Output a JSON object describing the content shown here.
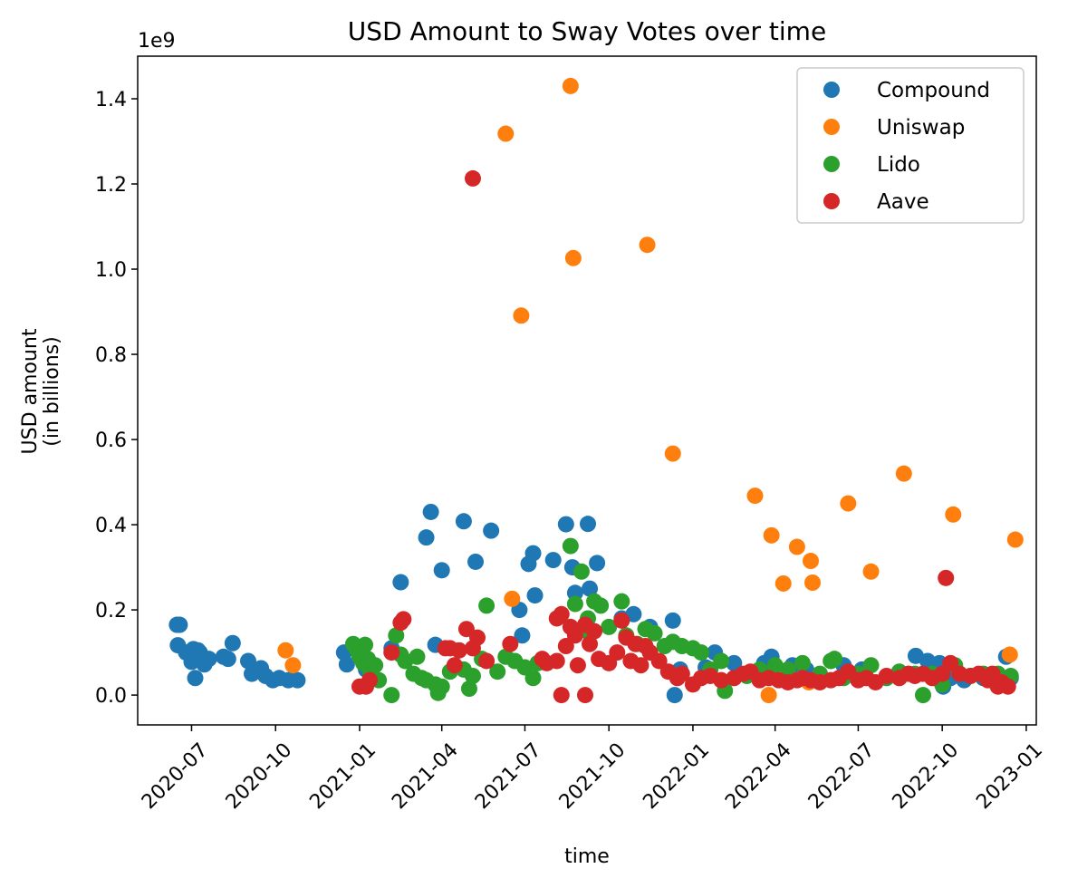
{
  "chart_data": {
    "type": "scatter",
    "title": "USD Amount to Sway Votes over time",
    "xlabel": "time",
    "ylabel_lines": [
      "USD amount",
      "(in billions)"
    ],
    "offset_label": "1e9",
    "x_ticks": [
      "2020-07",
      "2020-10",
      "2021-01",
      "2021-04",
      "2021-07",
      "2021-10",
      "2022-01",
      "2022-04",
      "2022-07",
      "2022-10",
      "2023-01"
    ],
    "y_ticks": [
      "0.0",
      "0.2",
      "0.4",
      "0.6",
      "0.8",
      "1.0",
      "1.2",
      "1.4"
    ],
    "xlim": [
      "2020-05-03",
      "2023-01-12"
    ],
    "ylim": [
      -0.07,
      1.5
    ],
    "legend_position": "top-right",
    "series": [
      {
        "name": "Compound",
        "color": "#1f77b4",
        "points": [
          [
            "2020-06-15",
            0.165
          ],
          [
            "2020-06-18",
            0.165
          ],
          [
            "2020-06-16",
            0.117
          ],
          [
            "2020-06-25",
            0.1
          ],
          [
            "2020-07-01",
            0.078
          ],
          [
            "2020-07-03",
            0.108
          ],
          [
            "2020-07-05",
            0.04
          ],
          [
            "2020-07-08",
            0.105
          ],
          [
            "2020-07-10",
            0.1
          ],
          [
            "2020-07-15",
            0.072
          ],
          [
            "2020-07-20",
            0.085
          ],
          [
            "2020-08-05",
            0.09
          ],
          [
            "2020-08-10",
            0.085
          ],
          [
            "2020-08-15",
            0.122
          ],
          [
            "2020-09-01",
            0.08
          ],
          [
            "2020-09-05",
            0.05
          ],
          [
            "2020-09-15",
            0.063
          ],
          [
            "2020-09-20",
            0.045
          ],
          [
            "2020-09-28",
            0.035
          ],
          [
            "2020-10-05",
            0.04
          ],
          [
            "2020-10-15",
            0.035
          ],
          [
            "2020-10-25",
            0.035
          ],
          [
            "2020-12-15",
            0.1
          ],
          [
            "2020-12-18",
            0.072
          ],
          [
            "2021-01-08",
            0.06
          ],
          [
            "2021-02-05",
            0.11
          ],
          [
            "2021-02-15",
            0.265
          ],
          [
            "2021-03-15",
            0.37
          ],
          [
            "2021-03-20",
            0.43
          ],
          [
            "2021-03-25",
            0.118
          ],
          [
            "2021-04-01",
            0.293
          ],
          [
            "2021-04-25",
            0.408
          ],
          [
            "2021-05-08",
            0.313
          ],
          [
            "2021-05-25",
            0.386
          ],
          [
            "2021-06-25",
            0.2
          ],
          [
            "2021-06-28",
            0.14
          ],
          [
            "2021-07-05",
            0.308
          ],
          [
            "2021-07-10",
            0.333
          ],
          [
            "2021-07-12",
            0.234
          ],
          [
            "2021-08-01",
            0.317
          ],
          [
            "2021-08-15",
            0.401
          ],
          [
            "2021-08-22",
            0.3
          ],
          [
            "2021-08-25",
            0.24
          ],
          [
            "2021-09-08",
            0.402
          ],
          [
            "2021-09-10",
            0.25
          ],
          [
            "2021-09-18",
            0.31
          ],
          [
            "2021-10-15",
            0.18
          ],
          [
            "2021-10-28",
            0.19
          ],
          [
            "2021-11-15",
            0.16
          ],
          [
            "2021-12-10",
            0.175
          ],
          [
            "2021-12-12",
            0.0
          ],
          [
            "2021-12-18",
            0.06
          ],
          [
            "2022-01-15",
            0.065
          ],
          [
            "2022-01-25",
            0.1
          ],
          [
            "2022-02-15",
            0.075
          ],
          [
            "2022-03-20",
            0.075
          ],
          [
            "2022-03-28",
            0.09
          ],
          [
            "2022-04-20",
            0.07
          ],
          [
            "2022-05-05",
            0.06
          ],
          [
            "2022-06-15",
            0.07
          ],
          [
            "2022-07-05",
            0.06
          ],
          [
            "2022-08-15",
            0.05
          ],
          [
            "2022-09-02",
            0.092
          ],
          [
            "2022-09-15",
            0.08
          ],
          [
            "2022-09-28",
            0.075
          ],
          [
            "2022-10-02",
            0.02
          ],
          [
            "2022-10-10",
            0.04
          ],
          [
            "2022-10-25",
            0.035
          ],
          [
            "2022-11-15",
            0.04
          ],
          [
            "2022-12-10",
            0.09
          ],
          [
            "2022-12-15",
            0.04
          ]
        ]
      },
      {
        "name": "Uniswap",
        "color": "#ff7f0e",
        "points": [
          [
            "2020-10-12",
            0.105
          ],
          [
            "2020-10-20",
            0.07
          ],
          [
            "2021-06-10",
            1.318
          ],
          [
            "2021-06-17",
            0.226
          ],
          [
            "2021-06-27",
            0.891
          ],
          [
            "2021-08-20",
            1.43
          ],
          [
            "2021-08-23",
            1.026
          ],
          [
            "2021-11-12",
            1.057
          ],
          [
            "2021-12-10",
            0.567
          ],
          [
            "2022-03-10",
            0.468
          ],
          [
            "2022-03-28",
            0.375
          ],
          [
            "2022-04-10",
            0.262
          ],
          [
            "2022-04-25",
            0.348
          ],
          [
            "2022-05-10",
            0.315
          ],
          [
            "2022-05-12",
            0.264
          ],
          [
            "2022-05-08",
            0.03
          ],
          [
            "2022-06-20",
            0.45
          ],
          [
            "2022-07-15",
            0.29
          ],
          [
            "2022-08-20",
            0.52
          ],
          [
            "2022-10-13",
            0.424
          ],
          [
            "2022-12-14",
            0.095
          ],
          [
            "2022-12-20",
            0.365
          ],
          [
            "2022-03-25",
            0.0
          ]
        ]
      },
      {
        "name": "Lido",
        "color": "#2ca02c",
        "points": [
          [
            "2020-12-25",
            0.12
          ],
          [
            "2020-12-28",
            0.11
          ],
          [
            "2021-01-01",
            0.09
          ],
          [
            "2021-01-03",
            0.1
          ],
          [
            "2021-01-05",
            0.075
          ],
          [
            "2021-01-07",
            0.118
          ],
          [
            "2021-01-10",
            0.085
          ],
          [
            "2021-01-12",
            0.06
          ],
          [
            "2021-01-15",
            0.04
          ],
          [
            "2021-01-18",
            0.07
          ],
          [
            "2021-01-22",
            0.035
          ],
          [
            "2021-02-05",
            0.0
          ],
          [
            "2021-02-10",
            0.14
          ],
          [
            "2021-02-15",
            0.095
          ],
          [
            "2021-02-20",
            0.08
          ],
          [
            "2021-03-01",
            0.05
          ],
          [
            "2021-03-05",
            0.09
          ],
          [
            "2021-03-10",
            0.04
          ],
          [
            "2021-03-15",
            0.035
          ],
          [
            "2021-03-25",
            0.025
          ],
          [
            "2021-03-28",
            0.005
          ],
          [
            "2021-04-01",
            0.02
          ],
          [
            "2021-04-10",
            0.055
          ],
          [
            "2021-04-25",
            0.06
          ],
          [
            "2021-05-01",
            0.015
          ],
          [
            "2021-05-05",
            0.045
          ],
          [
            "2021-05-15",
            0.085
          ],
          [
            "2021-05-20",
            0.21
          ],
          [
            "2021-06-01",
            0.055
          ],
          [
            "2021-06-10",
            0.09
          ],
          [
            "2021-06-20",
            0.08
          ],
          [
            "2021-07-01",
            0.065
          ],
          [
            "2021-07-10",
            0.04
          ],
          [
            "2021-07-15",
            0.075
          ],
          [
            "2021-08-20",
            0.35
          ],
          [
            "2021-08-25",
            0.214
          ],
          [
            "2021-09-01",
            0.29
          ],
          [
            "2021-09-08",
            0.18
          ],
          [
            "2021-09-10",
            0.145
          ],
          [
            "2021-09-15",
            0.22
          ],
          [
            "2021-09-22",
            0.21
          ],
          [
            "2021-10-01",
            0.16
          ],
          [
            "2021-10-15",
            0.22
          ],
          [
            "2021-10-20",
            0.14
          ],
          [
            "2021-11-01",
            0.12
          ],
          [
            "2021-11-10",
            0.155
          ],
          [
            "2021-11-20",
            0.145
          ],
          [
            "2021-12-01",
            0.115
          ],
          [
            "2021-12-10",
            0.125
          ],
          [
            "2021-12-20",
            0.115
          ],
          [
            "2022-01-01",
            0.11
          ],
          [
            "2022-01-10",
            0.1
          ],
          [
            "2022-01-20",
            0.06
          ],
          [
            "2022-02-01",
            0.08
          ],
          [
            "2022-02-05",
            0.01
          ],
          [
            "2022-03-01",
            0.045
          ],
          [
            "2022-03-15",
            0.06
          ],
          [
            "2022-04-01",
            0.07
          ],
          [
            "2022-04-15",
            0.06
          ],
          [
            "2022-05-01",
            0.075
          ],
          [
            "2022-05-20",
            0.05
          ],
          [
            "2022-06-01",
            0.08
          ],
          [
            "2022-06-05",
            0.085
          ],
          [
            "2022-06-15",
            0.04
          ],
          [
            "2022-07-01",
            0.05
          ],
          [
            "2022-07-15",
            0.07
          ],
          [
            "2022-08-01",
            0.04
          ],
          [
            "2022-08-15",
            0.055
          ],
          [
            "2022-09-01",
            0.05
          ],
          [
            "2022-09-10",
            0.0
          ],
          [
            "2022-09-20",
            0.05
          ],
          [
            "2022-10-01",
            0.025
          ],
          [
            "2022-10-15",
            0.07
          ],
          [
            "2022-11-01",
            0.045
          ],
          [
            "2022-11-15",
            0.05
          ],
          [
            "2022-12-01",
            0.05
          ],
          [
            "2022-12-15",
            0.045
          ]
        ]
      },
      {
        "name": "Aave",
        "color": "#d62728",
        "points": [
          [
            "2021-01-01",
            0.02
          ],
          [
            "2021-01-08",
            0.02
          ],
          [
            "2021-01-12",
            0.035
          ],
          [
            "2021-02-05",
            0.1
          ],
          [
            "2021-02-15",
            0.17
          ],
          [
            "2021-02-18",
            0.178
          ],
          [
            "2021-04-05",
            0.11
          ],
          [
            "2021-04-10",
            0.11
          ],
          [
            "2021-04-15",
            0.07
          ],
          [
            "2021-04-20",
            0.105
          ],
          [
            "2021-04-28",
            0.155
          ],
          [
            "2021-05-05",
            0.11
          ],
          [
            "2021-05-10",
            0.135
          ],
          [
            "2021-05-05",
            1.213
          ],
          [
            "2021-05-20",
            0.08
          ],
          [
            "2021-06-15",
            0.12
          ],
          [
            "2021-07-20",
            0.085
          ],
          [
            "2021-07-25",
            0.075
          ],
          [
            "2021-08-05",
            0.08
          ],
          [
            "2021-08-05",
            0.18
          ],
          [
            "2021-08-10",
            0.0
          ],
          [
            "2021-08-10",
            0.19
          ],
          [
            "2021-08-15",
            0.115
          ],
          [
            "2021-08-20",
            0.16
          ],
          [
            "2021-08-25",
            0.14
          ],
          [
            "2021-08-28",
            0.07
          ],
          [
            "2021-09-05",
            0.0
          ],
          [
            "2021-09-05",
            0.165
          ],
          [
            "2021-09-10",
            0.12
          ],
          [
            "2021-09-15",
            0.15
          ],
          [
            "2021-09-20",
            0.085
          ],
          [
            "2021-10-01",
            0.075
          ],
          [
            "2021-10-10",
            0.1
          ],
          [
            "2021-10-15",
            0.175
          ],
          [
            "2021-10-20",
            0.135
          ],
          [
            "2021-10-25",
            0.08
          ],
          [
            "2021-10-30",
            0.12
          ],
          [
            "2021-11-05",
            0.07
          ],
          [
            "2021-11-10",
            0.115
          ],
          [
            "2021-11-15",
            0.1
          ],
          [
            "2021-11-25",
            0.08
          ],
          [
            "2021-12-05",
            0.055
          ],
          [
            "2021-12-15",
            0.04
          ],
          [
            "2021-12-20",
            0.05
          ],
          [
            "2022-01-01",
            0.025
          ],
          [
            "2022-01-10",
            0.04
          ],
          [
            "2022-01-20",
            0.045
          ],
          [
            "2022-02-01",
            0.035
          ],
          [
            "2022-02-15",
            0.04
          ],
          [
            "2022-02-25",
            0.05
          ],
          [
            "2022-03-05",
            0.055
          ],
          [
            "2022-03-15",
            0.035
          ],
          [
            "2022-03-25",
            0.04
          ],
          [
            "2022-04-05",
            0.035
          ],
          [
            "2022-04-15",
            0.03
          ],
          [
            "2022-04-25",
            0.035
          ],
          [
            "2022-05-01",
            0.04
          ],
          [
            "2022-05-10",
            0.035
          ],
          [
            "2022-05-20",
            0.03
          ],
          [
            "2022-06-01",
            0.035
          ],
          [
            "2022-06-10",
            0.04
          ],
          [
            "2022-06-20",
            0.055
          ],
          [
            "2022-07-01",
            0.035
          ],
          [
            "2022-07-10",
            0.04
          ],
          [
            "2022-07-20",
            0.03
          ],
          [
            "2022-08-01",
            0.045
          ],
          [
            "2022-08-15",
            0.04
          ],
          [
            "2022-08-25",
            0.05
          ],
          [
            "2022-09-01",
            0.045
          ],
          [
            "2022-09-10",
            0.05
          ],
          [
            "2022-09-20",
            0.04
          ],
          [
            "2022-10-01",
            0.05
          ],
          [
            "2022-10-05",
            0.275
          ],
          [
            "2022-10-10",
            0.075
          ],
          [
            "2022-10-20",
            0.05
          ],
          [
            "2022-11-01",
            0.045
          ],
          [
            "2022-11-10",
            0.05
          ],
          [
            "2022-11-20",
            0.035
          ],
          [
            "2022-11-25",
            0.05
          ],
          [
            "2022-12-01",
            0.02
          ],
          [
            "2022-12-05",
            0.03
          ],
          [
            "2022-12-12",
            0.02
          ]
        ]
      }
    ]
  }
}
